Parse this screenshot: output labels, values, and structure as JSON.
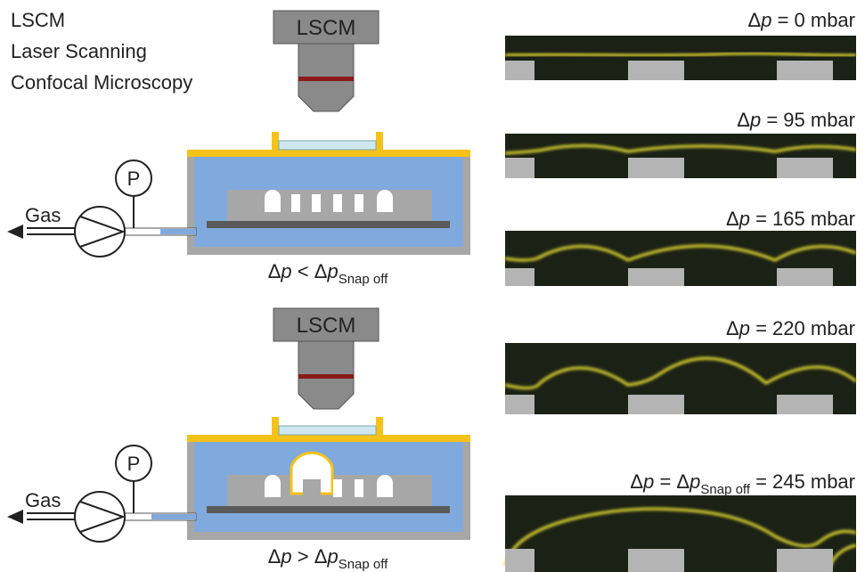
{
  "header": {
    "lines": [
      "LSCM",
      "Laser Scanning",
      "Confocal Microscopy"
    ]
  },
  "setups": [
    {
      "objective": "LSCM",
      "pressure_gauge": "P",
      "gas": "Gas",
      "condition": [
        "Δ",
        "p",
        " < Δ",
        "p",
        "Snap off"
      ]
    },
    {
      "objective": "LSCM",
      "pressure_gauge": "P",
      "gas": "Gas",
      "condition": [
        "Δ",
        "p",
        " > Δ",
        "p",
        "Snap off"
      ]
    }
  ],
  "panels": [
    {
      "label": [
        "Δ",
        "p",
        " = 0 mbar"
      ]
    },
    {
      "label": [
        "Δ",
        "p",
        " = 95 mbar"
      ]
    },
    {
      "label": [
        "Δ",
        "p",
        " = 165 mbar"
      ]
    },
    {
      "label": [
        "Δ",
        "p",
        " = 220 mbar"
      ]
    },
    {
      "label": [
        "Δ",
        "p",
        " = Δ",
        "p",
        "Snap off",
        " = 245 mbar"
      ]
    }
  ]
}
